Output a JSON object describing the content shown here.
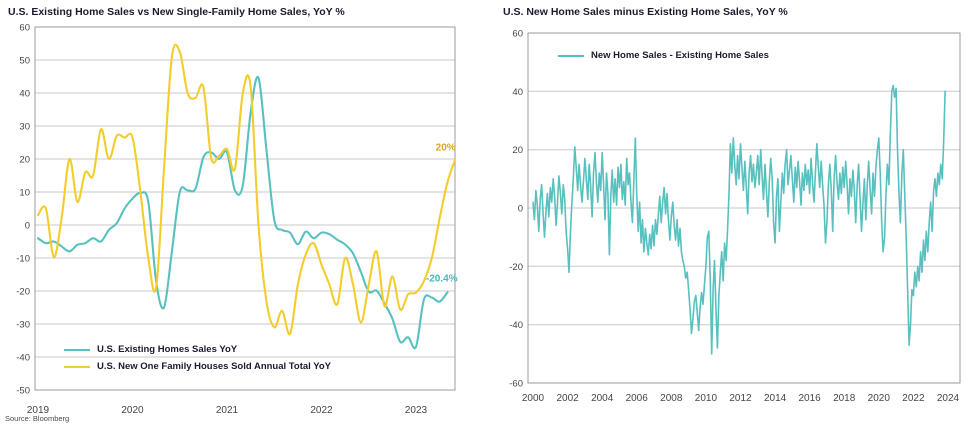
{
  "source_note": "Source: Bloomberg",
  "colors": {
    "teal": "#58c1bf",
    "yellow": "#f3cd2c",
    "gold_text": "#d9a620",
    "teal_text": "#45b8b6",
    "grid": "#c8c8c8",
    "border": "#9b9b9b",
    "title": "#1b1b2f",
    "tick": "#454545"
  },
  "chart_data": [
    {
      "type": "line",
      "title": "U.S. Existing Home Sales vs New Single-Family Home Sales, YoY %",
      "ylim": [
        -50,
        60
      ],
      "ytick_step": 10,
      "xticks": [
        2019,
        2020,
        2021,
        2022,
        2023
      ],
      "grid": true,
      "legend_position": "bottom-left-inside",
      "x_unit": "months",
      "series": [
        {
          "name": "U.S. Existing Homes Sales YoY",
          "color_key": "teal",
          "start_year": 2019,
          "smooth": true,
          "values": [
            -4,
            -5.5,
            -5,
            -6.5,
            -8,
            -6,
            -5.5,
            -4,
            -5,
            -1.5,
            0.5,
            5,
            8,
            9.7,
            7,
            -17,
            -25,
            -8,
            10,
            10.5,
            11,
            20.5,
            22,
            20,
            22,
            10.5,
            12,
            34,
            44.6,
            22.9,
            1.5,
            -1.5,
            -2.3,
            -5.8,
            -2,
            -4,
            -2.3,
            -2.8,
            -4.5,
            -5.9,
            -8.6,
            -14.2,
            -20.2,
            -19.9,
            -23.8,
            -28.4,
            -35.4,
            -34,
            -36.9,
            -22.6,
            -22,
            -23.2,
            -20.4
          ]
        },
        {
          "name": "U.S. New One Family Houses Sold Annual Total YoY",
          "color_key": "yellow",
          "start_year": 2019,
          "smooth": true,
          "values": [
            3,
            5,
            -9.7,
            2,
            20,
            7,
            16,
            15,
            29,
            20,
            27,
            26.5,
            26.5,
            10,
            -10,
            -19,
            17,
            51,
            52.5,
            40,
            38.5,
            41.8,
            20.3,
            21,
            23,
            17,
            40,
            42,
            0,
            -23,
            -31,
            -26,
            -33,
            -18,
            -9,
            -5.5,
            -12,
            -18,
            -24,
            -10,
            -18,
            -29.5,
            -18,
            -8,
            -24.6,
            -15.6,
            -25.6,
            -21,
            -20.5,
            -17,
            -10,
            2,
            13,
            20
          ]
        }
      ],
      "annotations": [
        {
          "text": "20%",
          "color_key": "gold_text",
          "x": 2023.42,
          "y": 23.5
        },
        {
          "text": "-20.4%",
          "color_key": "teal_text",
          "x": 2023.44,
          "y": -16.2
        }
      ]
    },
    {
      "type": "line",
      "title": "U.S. New Home Sales minus Existing Home Sales, YoY %",
      "ylim": [
        -60,
        60
      ],
      "ytick_step": 20,
      "xticks": [
        2000,
        2002,
        2004,
        2006,
        2008,
        2010,
        2012,
        2014,
        2016,
        2018,
        2020,
        2022,
        2024
      ],
      "grid": true,
      "legend_position": "top-inside",
      "x_unit": "months",
      "series": [
        {
          "name": "New Home Sales - Existing Home Sales",
          "color_key": "teal",
          "start_year": 2000,
          "smooth": false,
          "values": [
            2,
            -4,
            6,
            1,
            -8,
            3,
            8,
            -2,
            -10,
            -1,
            5,
            -3,
            7,
            2,
            10,
            4,
            -6,
            2,
            11,
            5,
            -2,
            8,
            3,
            -8,
            -14,
            -22,
            -8,
            2,
            10,
            21,
            14,
            6,
            15,
            8,
            2,
            9,
            17,
            10,
            3,
            15,
            8,
            -3,
            12,
            19,
            9,
            2,
            12,
            6,
            19,
            8,
            -4,
            12,
            5,
            -16,
            4,
            13,
            2,
            10,
            1,
            14,
            7,
            15,
            3,
            9,
            1,
            17,
            8,
            12,
            2,
            -5,
            10,
            24,
            5,
            -8,
            2,
            -12,
            -4,
            -15,
            -7,
            -12,
            -16,
            -9,
            -14,
            -6,
            -13,
            -4,
            -9,
            -2,
            4,
            -5,
            2,
            7,
            -2,
            5,
            -4,
            -11,
            -3,
            2,
            -6,
            -11,
            -4,
            -13,
            -7,
            -15,
            -18,
            -20,
            -24,
            -22,
            -28,
            -35,
            -43,
            -38,
            -32,
            -30,
            -36,
            -42,
            -34,
            -29,
            -33,
            -26,
            -20,
            -10,
            -8,
            -24,
            -50,
            -28,
            -18,
            -35,
            -48,
            -30,
            -22,
            -15,
            -25,
            -12,
            -18,
            -8,
            5,
            22,
            12,
            24,
            15,
            8,
            18,
            10,
            22,
            14,
            6,
            16,
            8,
            -2,
            12,
            18,
            9,
            15,
            7,
            12,
            18,
            8,
            20,
            11,
            3,
            15,
            6,
            -3,
            9,
            17,
            10,
            -5,
            -12,
            4,
            10,
            -8,
            2,
            12,
            5,
            15,
            20,
            8,
            13,
            18,
            10,
            2,
            14,
            7,
            16,
            9,
            1,
            12,
            6,
            15,
            8,
            13,
            5,
            17,
            9,
            2,
            12,
            22,
            14,
            7,
            16,
            8,
            1,
            -12,
            -5,
            8,
            15,
            6,
            -8,
            10,
            18,
            9,
            3,
            12,
            5,
            14,
            7,
            16,
            8,
            -2,
            10,
            4,
            13,
            6,
            -5,
            8,
            15,
            3,
            -8,
            2,
            10,
            -4,
            8,
            16,
            6,
            -2,
            12,
            4,
            14,
            20,
            24,
            12,
            -5,
            -15,
            -10,
            5,
            15,
            8,
            25,
            40,
            42,
            38,
            41,
            20,
            5,
            -5,
            12,
            20,
            5,
            -10,
            -28,
            -47,
            -40,
            -28,
            -30,
            -22,
            -27,
            -20,
            -25,
            -15,
            -22,
            -11,
            -18,
            -8,
            -15,
            -5,
            2,
            -8,
            6,
            10,
            4,
            12,
            8,
            15,
            10,
            22,
            40
          ]
        }
      ],
      "annotations": []
    }
  ]
}
